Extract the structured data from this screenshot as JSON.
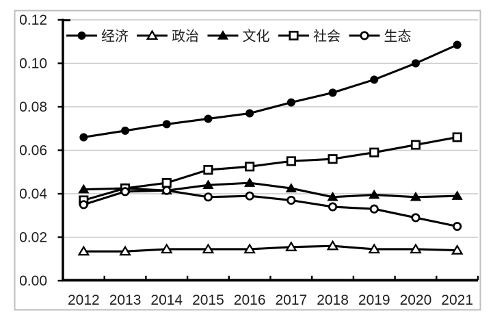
{
  "chart_data": {
    "type": "line",
    "title": "",
    "xlabel": "",
    "ylabel": "",
    "categories": [
      "2012",
      "2013",
      "2014",
      "2015",
      "2016",
      "2017",
      "2018",
      "2019",
      "2020",
      "2021"
    ],
    "series": [
      {
        "name": "经济",
        "marker": "circle-filled",
        "values": [
          0.066,
          0.069,
          0.072,
          0.0745,
          0.077,
          0.082,
          0.0865,
          0.0925,
          0.1,
          0.1085
        ]
      },
      {
        "name": "政治",
        "marker": "triangle-open",
        "values": [
          0.0135,
          0.0135,
          0.0145,
          0.0145,
          0.0145,
          0.0155,
          0.016,
          0.0145,
          0.0145,
          0.014
        ]
      },
      {
        "name": "文化",
        "marker": "triangle-filled",
        "values": [
          0.042,
          0.0425,
          0.0415,
          0.044,
          0.045,
          0.0425,
          0.0385,
          0.0395,
          0.0385,
          0.039
        ]
      },
      {
        "name": "社会",
        "marker": "square-open",
        "values": [
          0.037,
          0.0425,
          0.045,
          0.051,
          0.0525,
          0.055,
          0.056,
          0.059,
          0.0625,
          0.066
        ]
      },
      {
        "name": "生态",
        "marker": "circle-open",
        "values": [
          0.035,
          0.041,
          0.0415,
          0.0385,
          0.039,
          0.037,
          0.034,
          0.033,
          0.029,
          0.025
        ]
      }
    ],
    "ylim": [
      0,
      0.12
    ],
    "ytick_step": 0.02,
    "ytick_labels": [
      "0.00",
      "0.02",
      "0.04",
      "0.06",
      "0.08",
      "0.10",
      "0.12"
    ],
    "grid": "horizontal-only",
    "legend_position": "top-inside-horizontal",
    "colors": {
      "series_line": "#000000",
      "marker_fill_open": "#ffffff",
      "grid_line": "#c9c9c9",
      "axis_line": "#000000",
      "outer_border": "#bdbdbd",
      "text": "#1f1f1f",
      "background": "#ffffff"
    }
  }
}
